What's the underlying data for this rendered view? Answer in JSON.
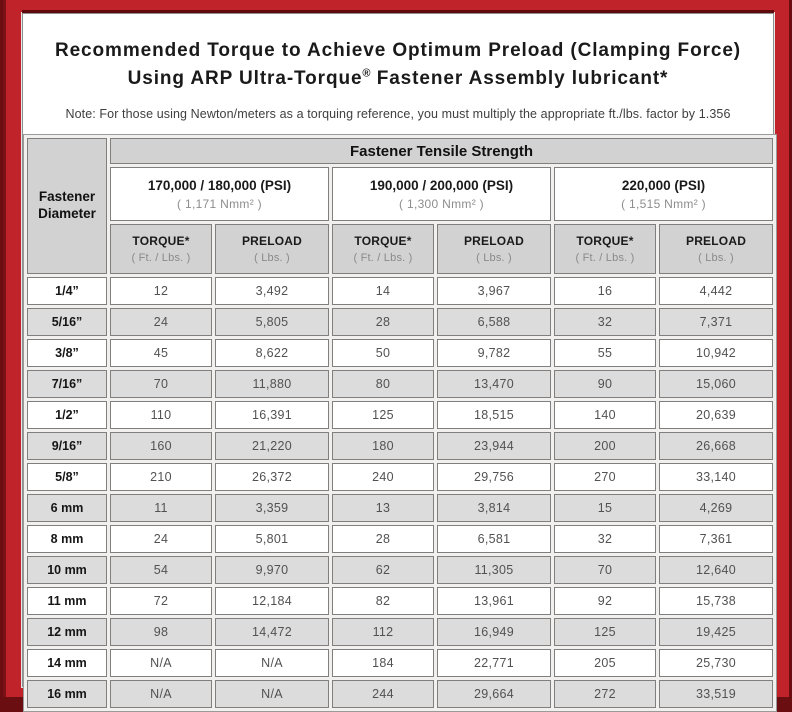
{
  "title": {
    "line1": "Recommended Torque to Achieve Optimum Preload (Clamping Force)",
    "line2_pre": "Using ARP Ultra-Torque",
    "reg_mark": "®",
    "line2_post": " Fastener Assembly lubricant*"
  },
  "note": "Note: For those using Newton/meters as a torquing reference, you must multiply the appropriate ft./lbs. factor by 1.356",
  "table": {
    "tensile_header": "Fastener Tensile Strength",
    "corner": {
      "line1": "Fastener",
      "line2": "Diameter"
    },
    "groups": [
      {
        "psi": "170,000 / 180,000 (PSI)",
        "nmm": "( 1,171 Nmm² )"
      },
      {
        "psi": "190,000 / 200,000 (PSI)",
        "nmm": "( 1,300 Nmm² )"
      },
      {
        "psi": "220,000 (PSI)",
        "nmm": "( 1,515 Nmm² )"
      }
    ],
    "col_headers": {
      "torque": "TORQUE*",
      "torque_sub": "( Ft. / Lbs. )",
      "preload": "PRELOAD",
      "preload_sub": "( Lbs. )"
    },
    "rows": [
      {
        "dia": "1/4”",
        "cells": [
          "12",
          "3,492",
          "14",
          "3,967",
          "16",
          "4,442"
        ]
      },
      {
        "dia": "5/16”",
        "cells": [
          "24",
          "5,805",
          "28",
          "6,588",
          "32",
          "7,371"
        ]
      },
      {
        "dia": "3/8”",
        "cells": [
          "45",
          "8,622",
          "50",
          "9,782",
          "55",
          "10,942"
        ]
      },
      {
        "dia": "7/16”",
        "cells": [
          "70",
          "11,880",
          "80",
          "13,470",
          "90",
          "15,060"
        ]
      },
      {
        "dia": "1/2”",
        "cells": [
          "110",
          "16,391",
          "125",
          "18,515",
          "140",
          "20,639"
        ]
      },
      {
        "dia": "9/16”",
        "cells": [
          "160",
          "21,220",
          "180",
          "23,944",
          "200",
          "26,668"
        ]
      },
      {
        "dia": "5/8”",
        "cells": [
          "210",
          "26,372",
          "240",
          "29,756",
          "270",
          "33,140"
        ]
      },
      {
        "dia": "6 mm",
        "cells": [
          "11",
          "3,359",
          "13",
          "3,814",
          "15",
          "4,269"
        ]
      },
      {
        "dia": "8 mm",
        "cells": [
          "24",
          "5,801",
          "28",
          "6,581",
          "32",
          "7,361"
        ]
      },
      {
        "dia": "10 mm",
        "cells": [
          "54",
          "9,970",
          "62",
          "11,305",
          "70",
          "12,640"
        ]
      },
      {
        "dia": "11 mm",
        "cells": [
          "72",
          "12,184",
          "82",
          "13,961",
          "92",
          "15,738"
        ]
      },
      {
        "dia": "12 mm",
        "cells": [
          "98",
          "14,472",
          "112",
          "16,949",
          "125",
          "19,425"
        ]
      },
      {
        "dia": "14 mm",
        "cells": [
          "N/A",
          "N/A",
          "184",
          "22,771",
          "205",
          "25,730"
        ]
      },
      {
        "dia": "16 mm",
        "cells": [
          "N/A",
          "N/A",
          "244",
          "29,664",
          "272",
          "33,519"
        ]
      }
    ]
  },
  "colors": {
    "frame_red": "#c1232a",
    "frame_dark_maroon": "#6b0e12",
    "header_gray": "#d2d2d2",
    "row_alt_gray": "#dcdcdc"
  }
}
